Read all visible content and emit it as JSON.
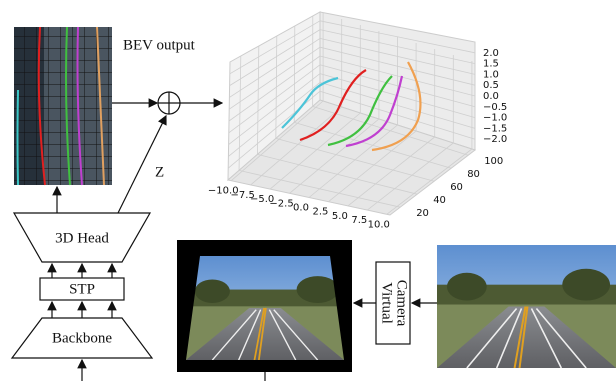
{
  "bev_label": "BEV output",
  "z_label": "Z",
  "head": "3D Head",
  "stp": "STP",
  "backbone": "Backbone",
  "virtual_camera": [
    "Virtual",
    "Camera"
  ],
  "plot": {
    "z_ticks": [
      "2.0",
      "1.5",
      "1.0",
      "0.5",
      "0.0",
      "−0.5",
      "−1.0",
      "−1.5",
      "−2.0"
    ],
    "x_ticks": [
      "−10.0",
      "−7.5",
      "−5.0",
      "−2.5",
      "0.0",
      "2.5",
      "5.0",
      "7.5",
      "10.0"
    ],
    "y_ticks": [
      "20",
      "40",
      "60",
      "80",
      "100"
    ]
  }
}
